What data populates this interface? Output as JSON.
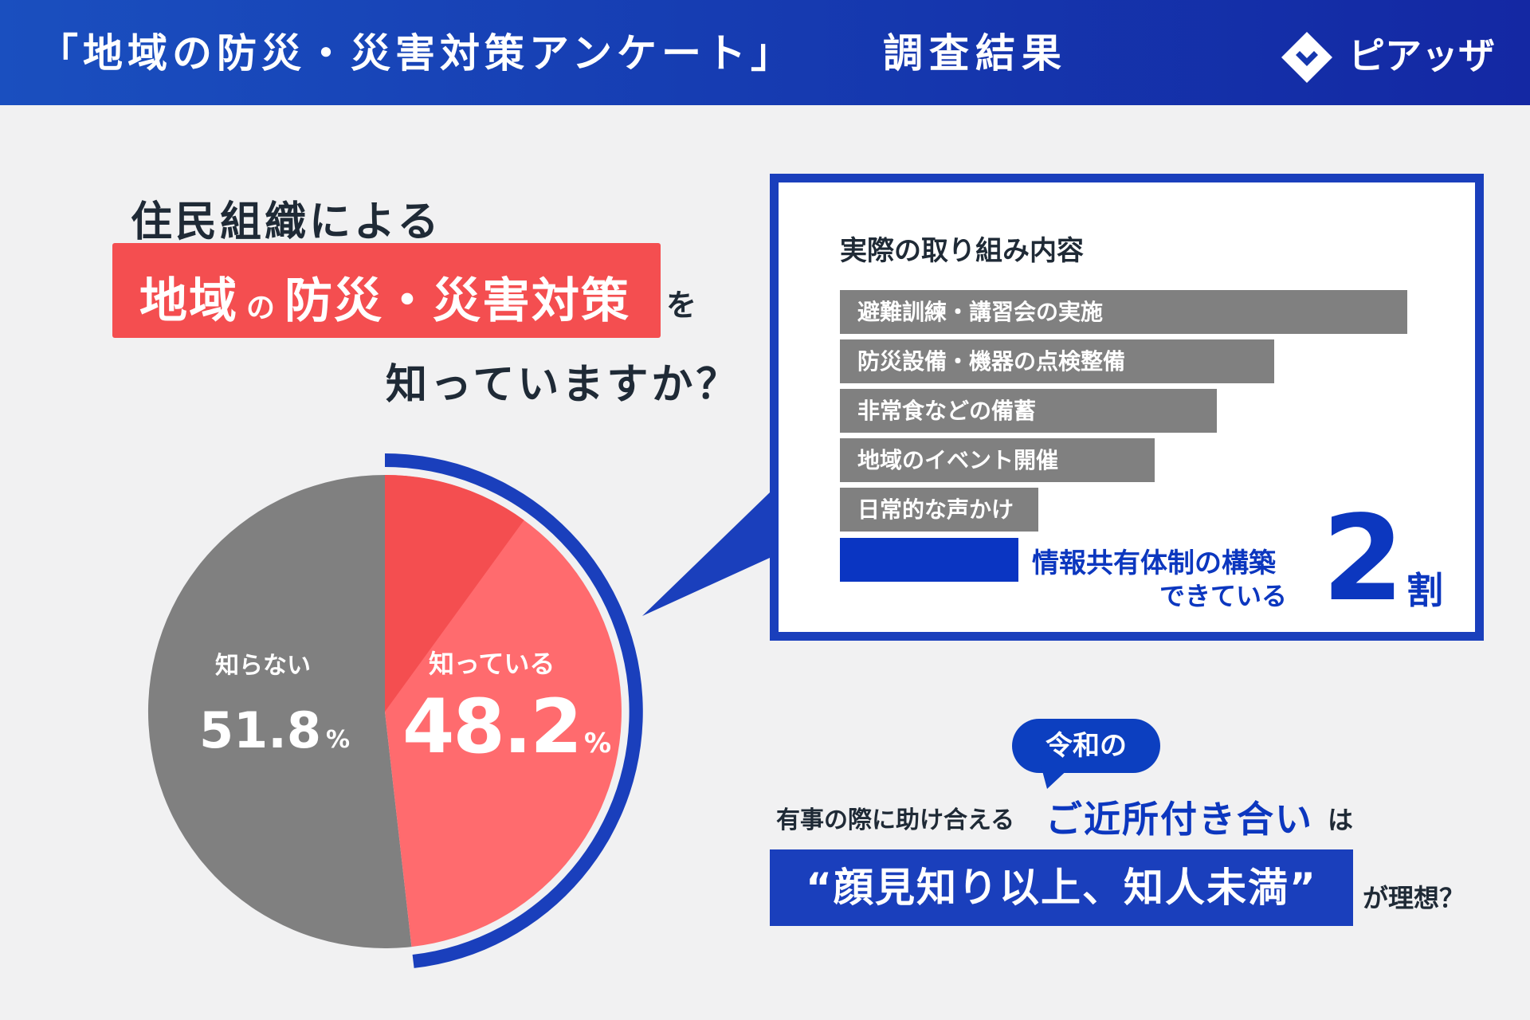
{
  "header": {
    "title": "「地域の防災・災害対策アンケート」",
    "subtitle": "調査結果",
    "brand": "ピアッザ"
  },
  "question": {
    "line1": "住民組織による",
    "highlight_main": "地域",
    "highlight_small": "の",
    "highlight_rest": "防災・災害対策",
    "particle": "を",
    "line3": "知っていますか？"
  },
  "chart_data": [
    {
      "type": "pie",
      "slices": [
        {
          "label": "知っている",
          "value": 48.2,
          "unit": "%",
          "color": "#ff6b6e"
        },
        {
          "label": "知らない",
          "value": 51.8,
          "unit": "%",
          "color": "#808080"
        }
      ],
      "sub_slice": {
        "parent": "知っている",
        "share_of_total": 10,
        "color": "#f44e50",
        "note": "情報共有体制の構築できている 2割"
      }
    },
    {
      "type": "bar",
      "title": "実際の取り組み内容",
      "categories": [
        "避難訓練・講習会の実施",
        "防災設備・機器の点検整備",
        "非常食などの備蓄",
        "地域のイベント開催",
        "日常的な声かけ",
        "情報共有体制の構築できている"
      ],
      "values": [
        100,
        76.5,
        66.5,
        55.5,
        35,
        31.5
      ],
      "colors": [
        "#808080",
        "#808080",
        "#808080",
        "#808080",
        "#808080",
        "#0a35c2"
      ]
    }
  ],
  "callout": {
    "line1": "情報共有体制の構築",
    "line2": "できている",
    "big_number": "2",
    "unit": "割"
  },
  "pie_labels": {
    "known_label": "知っている",
    "known_value": "48.2",
    "known_unit": "%",
    "unknown_label": "知らない",
    "unknown_value": "51.8",
    "unknown_unit": "%"
  },
  "conclusion": {
    "bubble": "令和の",
    "prefix": "有事の際に助け合える",
    "emphasis": "ご近所付き合い",
    "particle": "は",
    "quote": "“顔見知り以上、知人未満”",
    "suffix": "が理想？"
  },
  "colors": {
    "brand_blue": "#1a3fbc",
    "accent_red": "#f44e50",
    "light_red": "#ff6b6e",
    "gray": "#808080"
  }
}
